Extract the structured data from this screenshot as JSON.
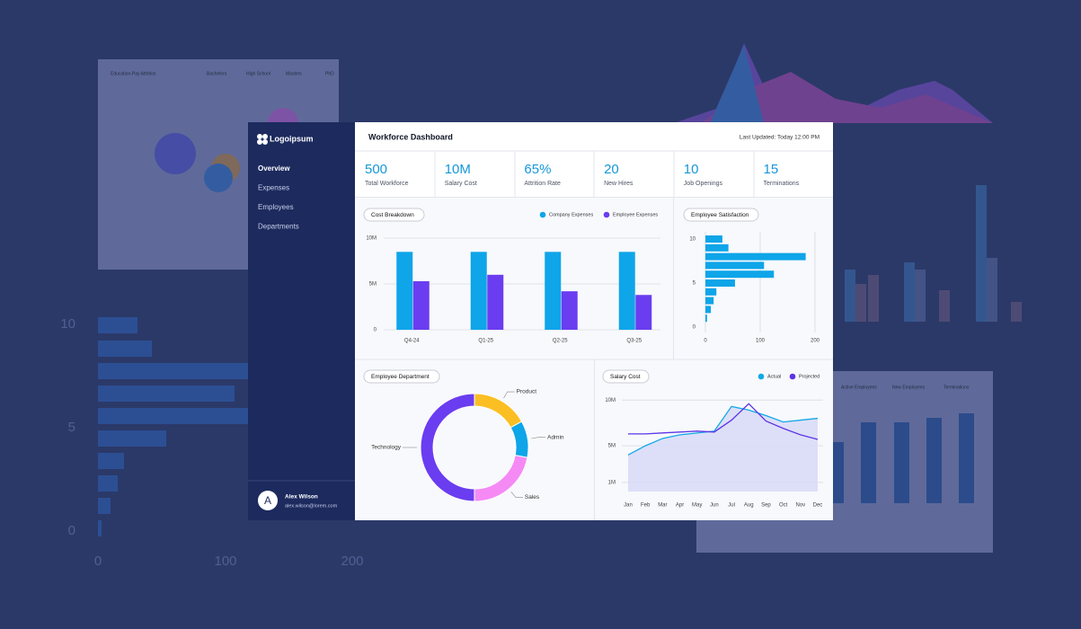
{
  "sidebar": {
    "logo": "Logoipsum",
    "nav": [
      "Overview",
      "Expenses",
      "Employees",
      "Departments"
    ],
    "user": {
      "initial": "A",
      "name": "Alex Wilson",
      "email": "alex.wilson@lorem.com"
    }
  },
  "header": {
    "title": "Workforce Dashboard",
    "updated": "Last Updated: Today 12:00 PM"
  },
  "kpis": [
    {
      "value": "500",
      "label": "Total Workforce"
    },
    {
      "value": "10M",
      "label": "Salary Cost"
    },
    {
      "value": "65%",
      "label": "Attrition Rate"
    },
    {
      "value": "20",
      "label": "New Hires"
    },
    {
      "value": "10",
      "label": "Job Openings"
    },
    {
      "value": "15",
      "label": "Terminations"
    }
  ],
  "chart_data": [
    {
      "type": "bar",
      "title": "Cost Breakdown",
      "categories": [
        "Q4-24",
        "Q1-25",
        "Q2-25",
        "Q3-25"
      ],
      "series": [
        {
          "name": "Company Expenses",
          "color": "#0ea5e9",
          "values": [
            8500000,
            8500000,
            8500000,
            8500000
          ]
        },
        {
          "name": "Employee Expenses",
          "color": "#6a3df0",
          "values": [
            5300000,
            6000000,
            4200000,
            3800000
          ]
        }
      ],
      "ylim": [
        0,
        10000000
      ],
      "yticks": [
        0,
        {
          "value": 5000000,
          "label": "5M"
        },
        {
          "value": 10000000,
          "label": "10M"
        }
      ],
      "grid": true,
      "legend": "top-right"
    },
    {
      "type": "hbar",
      "title": "Employee Satisfaction",
      "categories": [
        10,
        9,
        8,
        7,
        6,
        5,
        4,
        3,
        2,
        1
      ],
      "values": [
        31,
        42,
        183,
        107,
        125,
        54,
        20,
        15,
        10,
        3
      ],
      "color": "#0ea5e9",
      "xlim": [
        0,
        200
      ],
      "xticks": [
        0,
        100,
        200
      ],
      "ylim": [
        0,
        10
      ],
      "yticks": [
        0,
        5,
        10
      ],
      "grid": true
    },
    {
      "type": "donut",
      "title": "Employee Department",
      "categories": [
        "Product",
        "Admin",
        "Sales",
        "Technology"
      ],
      "values": [
        17,
        11,
        22,
        50
      ],
      "colors": [
        "#fbbf24",
        "#0ea5e9",
        "#f58af5",
        "#6a3df0"
      ]
    },
    {
      "type": "line",
      "title": "Salary Cost",
      "categories": [
        "Jan",
        "Feb",
        "Mar",
        "Apr",
        "May",
        "Jun",
        "Jul",
        "Aug",
        "Sep",
        "Oct",
        "Nov",
        "Dec"
      ],
      "series": [
        {
          "name": "Actual",
          "color": "#13a8e6",
          "fill": "#d9dcf7",
          "values": [
            4000000,
            5000000,
            5800000,
            6200000,
            6400000,
            6600000,
            9300000,
            8900000,
            8300000,
            7600000,
            7800000,
            8000000
          ]
        },
        {
          "name": "Projected",
          "color": "#5b35e6",
          "values": [
            6300000,
            6300000,
            6400000,
            6500000,
            6600000,
            6500000,
            7800000,
            9600000,
            7700000,
            6900000,
            6200000,
            5700000
          ]
        }
      ],
      "ylim": [
        0,
        11000000
      ],
      "yticks": [
        {
          "value": 1000000,
          "label": "1M"
        },
        {
          "value": 5000000,
          "label": "5M"
        },
        {
          "value": 10000000,
          "label": "10M"
        }
      ],
      "grid": true,
      "legend": "top-right"
    }
  ],
  "background": {
    "y_labels": [
      "10",
      "5",
      "0"
    ],
    "x_labels": [
      "0",
      "100",
      "200"
    ],
    "bubble_title": "Education-Pay Attrition",
    "bubble_legend": [
      "Bachelors",
      "High School",
      "Masters",
      "PhD"
    ],
    "bar_legend": [
      "Active Employees",
      "New Employees",
      "Terminations"
    ]
  }
}
